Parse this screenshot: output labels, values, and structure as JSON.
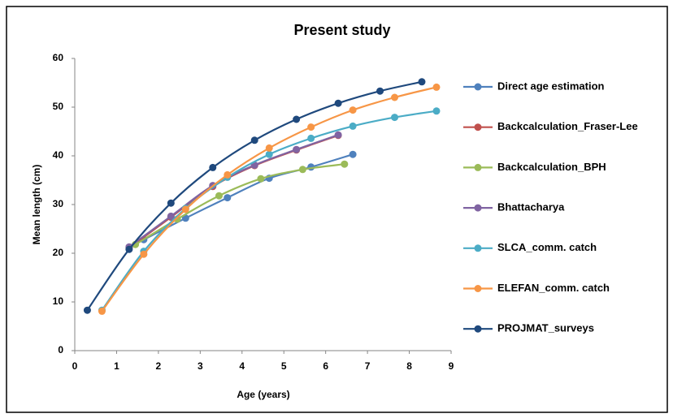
{
  "chart_data": {
    "type": "line",
    "title": "Present study",
    "x_label": "Age (years)",
    "y_label": "Mean length (cm)",
    "xlim": [
      0,
      9
    ],
    "xticks": [
      0,
      1,
      2,
      3,
      4,
      5,
      6,
      7,
      8,
      9
    ],
    "ylim": [
      0,
      60
    ],
    "yticks": [
      0,
      10,
      20,
      30,
      40,
      50,
      60
    ],
    "grid": false,
    "legend": "right",
    "series": [
      {
        "name": "Direct age estimation",
        "color": "#4f81bd",
        "x": [
          1.65,
          2.65,
          3.65,
          4.65,
          5.65,
          6.65
        ],
        "values": [
          22.8,
          27.2,
          31.4,
          35.4,
          37.7,
          40.3
        ]
      },
      {
        "name": "Backcalculation_Fraser-Lee",
        "color": "#c0504d",
        "x": [
          1.3,
          2.3,
          3.3,
          4.3,
          5.3,
          6.3
        ],
        "values": [
          21.1,
          27.4,
          33.7,
          38.0,
          41.2,
          44.2
        ]
      },
      {
        "name": "Backcalculation_BPH",
        "color": "#9bbb59",
        "x": [
          1.45,
          2.45,
          3.45,
          4.45,
          5.45,
          6.45
        ],
        "values": [
          21.8,
          27.0,
          31.8,
          35.3,
          37.2,
          38.3
        ]
      },
      {
        "name": "Bhattacharya",
        "color": "#8064a2",
        "x": [
          1.3,
          2.3,
          3.3,
          4.3,
          5.3,
          6.3
        ],
        "values": [
          21.3,
          27.6,
          33.9,
          38.1,
          41.3,
          44.3
        ]
      },
      {
        "name": "SLCA_comm. catch",
        "color": "#4bacc6",
        "x": [
          0.65,
          1.65,
          2.65,
          3.65,
          4.65,
          5.65,
          6.65,
          7.65,
          8.65
        ],
        "values": [
          8.3,
          20.4,
          29.2,
          35.6,
          40.3,
          43.6,
          46.1,
          47.9,
          49.2
        ]
      },
      {
        "name": "ELEFAN_comm. catch",
        "color": "#f79646",
        "x": [
          0.65,
          1.65,
          2.65,
          3.65,
          4.65,
          5.65,
          6.65,
          7.65,
          8.65
        ],
        "values": [
          8.1,
          19.8,
          29.0,
          36.1,
          41.6,
          45.9,
          49.4,
          52.0,
          54.1
        ]
      },
      {
        "name": "PROJMAT_surveys",
        "color": "#1f497d",
        "x": [
          0.3,
          1.3,
          2.3,
          3.3,
          4.3,
          5.3,
          6.3,
          7.3,
          8.3
        ],
        "values": [
          8.3,
          20.8,
          30.3,
          37.6,
          43.2,
          47.5,
          50.8,
          53.3,
          55.2
        ]
      }
    ]
  }
}
